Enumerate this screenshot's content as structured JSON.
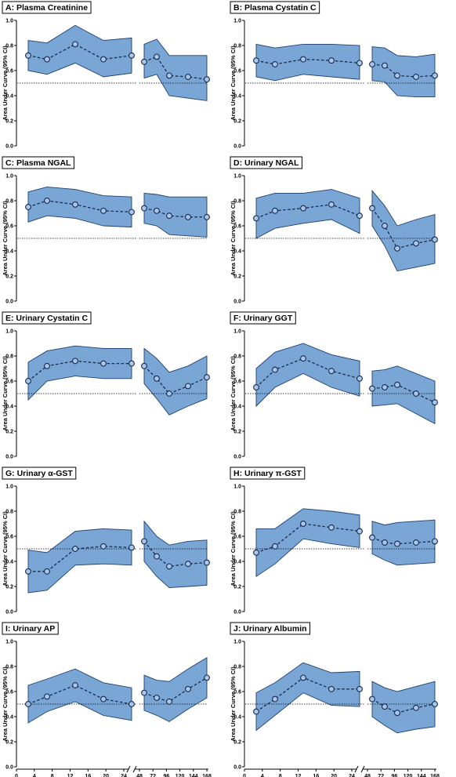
{
  "chart_data": [
    {
      "type": "line",
      "title": "A: Plasma Creatinine",
      "ylabel": "Area Under Curve (95% CI)",
      "ylim": [
        0,
        1
      ],
      "reference": 0.5,
      "show_xaxis": false,
      "x": [
        2,
        6,
        12,
        18,
        24,
        28,
        32,
        36,
        42,
        48
      ],
      "values": [
        0.72,
        0.69,
        0.81,
        0.69,
        0.72,
        0.67,
        0.71,
        0.56,
        0.55,
        0.53
      ],
      "lower": [
        0.6,
        0.57,
        0.66,
        0.55,
        0.58,
        0.54,
        0.57,
        0.4,
        0.38,
        0.36
      ],
      "upper": [
        0.84,
        0.82,
        0.96,
        0.84,
        0.86,
        0.81,
        0.85,
        0.72,
        0.72,
        0.72
      ]
    },
    {
      "type": "line",
      "title": "B: Plasma Cystatin C",
      "ylabel": "Area Under Curve (95% CI)",
      "ylim": [
        0,
        1
      ],
      "reference": 0.5,
      "show_xaxis": false,
      "x": [
        2,
        6,
        12,
        18,
        24,
        28,
        32,
        36,
        42,
        48
      ],
      "values": [
        0.68,
        0.65,
        0.69,
        0.68,
        0.66,
        0.65,
        0.64,
        0.56,
        0.55,
        0.56
      ],
      "lower": [
        0.55,
        0.52,
        0.57,
        0.55,
        0.53,
        0.52,
        0.51,
        0.4,
        0.39,
        0.39
      ],
      "upper": [
        0.81,
        0.78,
        0.81,
        0.81,
        0.8,
        0.79,
        0.78,
        0.72,
        0.71,
        0.73
      ]
    },
    {
      "type": "line",
      "title": "C: Plasma NGAL",
      "ylabel": "Area Under Curve (95% CI)",
      "ylim": [
        0,
        1
      ],
      "reference": 0.5,
      "show_xaxis": false,
      "x": [
        2,
        6,
        12,
        18,
        24,
        28,
        32,
        36,
        42,
        48
      ],
      "values": [
        0.75,
        0.8,
        0.77,
        0.72,
        0.71,
        0.74,
        0.72,
        0.68,
        0.67,
        0.67
      ],
      "lower": [
        0.63,
        0.68,
        0.66,
        0.6,
        0.59,
        0.62,
        0.6,
        0.53,
        0.52,
        0.51
      ],
      "upper": [
        0.87,
        0.91,
        0.89,
        0.84,
        0.83,
        0.86,
        0.85,
        0.83,
        0.83,
        0.83
      ]
    },
    {
      "type": "line",
      "title": "D: Urinary NGAL",
      "ylabel": "Area Under Curve (95% CI)",
      "ylim": [
        0,
        1
      ],
      "reference": 0.5,
      "show_xaxis": false,
      "x": [
        2,
        6,
        12,
        18,
        24,
        28,
        32,
        36,
        42,
        48
      ],
      "values": [
        0.66,
        0.72,
        0.74,
        0.77,
        0.68,
        0.74,
        0.6,
        0.42,
        0.46,
        0.49
      ],
      "lower": [
        0.5,
        0.58,
        0.62,
        0.65,
        0.54,
        0.6,
        0.44,
        0.24,
        0.27,
        0.3
      ],
      "upper": [
        0.82,
        0.86,
        0.86,
        0.89,
        0.82,
        0.88,
        0.76,
        0.6,
        0.65,
        0.69
      ]
    },
    {
      "type": "line",
      "title": "E: Urinary Cystatin C",
      "ylabel": "Area Under Curve (95% CI)",
      "ylim": [
        0,
        1
      ],
      "reference": 0.5,
      "show_xaxis": false,
      "x": [
        2,
        6,
        12,
        18,
        24,
        28,
        32,
        36,
        42,
        48
      ],
      "values": [
        0.6,
        0.72,
        0.76,
        0.74,
        0.74,
        0.72,
        0.62,
        0.5,
        0.56,
        0.63
      ],
      "lower": [
        0.45,
        0.6,
        0.64,
        0.62,
        0.62,
        0.58,
        0.46,
        0.33,
        0.4,
        0.46
      ],
      "upper": [
        0.75,
        0.84,
        0.88,
        0.86,
        0.86,
        0.86,
        0.78,
        0.67,
        0.72,
        0.8
      ]
    },
    {
      "type": "line",
      "title": "F: Urinary GGT",
      "ylabel": "Area Under Curve (95% CI)",
      "ylim": [
        0,
        1
      ],
      "reference": 0.5,
      "show_xaxis": false,
      "x": [
        2,
        6,
        12,
        18,
        24,
        28,
        32,
        36,
        42,
        48
      ],
      "values": [
        0.55,
        0.69,
        0.78,
        0.68,
        0.62,
        0.54,
        0.55,
        0.57,
        0.5,
        0.43
      ],
      "lower": [
        0.4,
        0.55,
        0.66,
        0.55,
        0.48,
        0.4,
        0.41,
        0.42,
        0.34,
        0.26
      ],
      "upper": [
        0.7,
        0.83,
        0.9,
        0.81,
        0.76,
        0.68,
        0.69,
        0.72,
        0.66,
        0.6
      ]
    },
    {
      "type": "line",
      "title": "G: Urinary α-GST",
      "ylabel": "Area Under Curve (95% CI)",
      "ylim": [
        0,
        1
      ],
      "reference": 0.5,
      "show_xaxis": false,
      "x": [
        2,
        6,
        12,
        18,
        24,
        28,
        32,
        36,
        42,
        48
      ],
      "values": [
        0.32,
        0.32,
        0.5,
        0.52,
        0.51,
        0.56,
        0.44,
        0.36,
        0.38,
        0.39
      ],
      "lower": [
        0.15,
        0.17,
        0.37,
        0.38,
        0.37,
        0.4,
        0.28,
        0.19,
        0.2,
        0.21
      ],
      "upper": [
        0.49,
        0.47,
        0.64,
        0.66,
        0.65,
        0.72,
        0.6,
        0.53,
        0.56,
        0.57
      ]
    },
    {
      "type": "line",
      "title": "H: Urinary π-GST",
      "ylabel": "Area Under Curve (95% CI)",
      "ylim": [
        0,
        1
      ],
      "reference": 0.5,
      "show_xaxis": false,
      "x": [
        2,
        6,
        12,
        18,
        24,
        28,
        32,
        36,
        42,
        48
      ],
      "values": [
        0.47,
        0.52,
        0.7,
        0.67,
        0.64,
        0.59,
        0.55,
        0.54,
        0.55,
        0.56
      ],
      "lower": [
        0.28,
        0.38,
        0.58,
        0.54,
        0.51,
        0.46,
        0.41,
        0.37,
        0.38,
        0.39
      ],
      "upper": [
        0.66,
        0.66,
        0.82,
        0.8,
        0.77,
        0.72,
        0.69,
        0.71,
        0.72,
        0.73
      ]
    },
    {
      "type": "line",
      "title": "I: Urinary AP",
      "ylabel": "Area Under Curve (95% CI)",
      "ylim": [
        0,
        1
      ],
      "reference": 0.5,
      "show_xaxis": true,
      "x": [
        2,
        6,
        12,
        18,
        24,
        28,
        32,
        36,
        42,
        48
      ],
      "values": [
        0.5,
        0.56,
        0.65,
        0.54,
        0.5,
        0.59,
        0.55,
        0.52,
        0.62,
        0.71
      ],
      "lower": [
        0.35,
        0.44,
        0.52,
        0.41,
        0.37,
        0.45,
        0.41,
        0.36,
        0.46,
        0.55
      ],
      "upper": [
        0.65,
        0.7,
        0.78,
        0.67,
        0.63,
        0.73,
        0.69,
        0.68,
        0.78,
        0.87
      ]
    },
    {
      "type": "line",
      "title": "J: Urinary Albumin",
      "ylabel": "Area Under Curve (95% CI)",
      "ylim": [
        0,
        1
      ],
      "reference": 0.5,
      "show_xaxis": true,
      "x": [
        2,
        6,
        12,
        18,
        24,
        28,
        32,
        36,
        42,
        48
      ],
      "values": [
        0.44,
        0.54,
        0.71,
        0.62,
        0.62,
        0.54,
        0.48,
        0.43,
        0.47,
        0.5
      ],
      "lower": [
        0.29,
        0.41,
        0.59,
        0.49,
        0.48,
        0.4,
        0.33,
        0.27,
        0.3,
        0.32
      ],
      "upper": [
        0.59,
        0.67,
        0.83,
        0.75,
        0.76,
        0.68,
        0.63,
        0.6,
        0.64,
        0.68
      ]
    }
  ],
  "axis": {
    "yticks": [
      "0.0",
      "0.2",
      "0.4",
      "0.6",
      "0.8",
      "1.0"
    ],
    "xticks_left": [
      "0",
      "4",
      "8",
      "12",
      "16",
      "20",
      "24"
    ],
    "xticks_right": [
      "48",
      "72",
      "96",
      "120",
      "144",
      "168"
    ]
  },
  "colors": {
    "band": "#7aa6d6",
    "band_edge": "#1f3f6e",
    "marker": "#a7c7ec",
    "line": "#1a2a4a"
  }
}
